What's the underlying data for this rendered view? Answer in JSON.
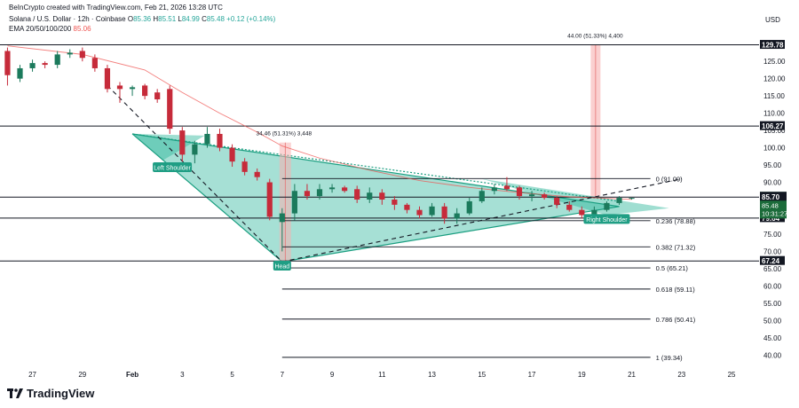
{
  "header": {
    "credit": "BeInCrypto created with TradingView.com, Feb 21, 2026 13:28 UTC",
    "symbol": "Solana / U.S. Dollar · 12h · Coinbase",
    "ohlc": {
      "o_label": "O",
      "o": "85.36",
      "h_label": "H",
      "h": "85.51",
      "l_label": "L",
      "l": "84.99",
      "c_label": "C",
      "c": "85.48",
      "chg": "+0.12 (+0.14%)"
    },
    "ema_label": "EMA 20/50/100/200",
    "ema_value": "85.06"
  },
  "brand": {
    "name": "TradingView"
  },
  "chart_data": {
    "type": "candlestick",
    "currency": "USD",
    "ylim": [
      37,
      133
    ],
    "y_ticks": [
      40,
      45,
      50,
      55,
      60,
      65,
      70,
      75,
      80,
      85,
      90,
      95,
      100,
      105,
      110,
      115,
      120,
      125
    ],
    "x_ticks": [
      {
        "label": "27",
        "t": 1
      },
      {
        "label": "29",
        "t": 5
      },
      {
        "label": "Feb",
        "t": 9
      },
      {
        "label": "3",
        "t": 13
      },
      {
        "label": "5",
        "t": 17
      },
      {
        "label": "7",
        "t": 21
      },
      {
        "label": "9",
        "t": 25
      },
      {
        "label": "11",
        "t": 29
      },
      {
        "label": "13",
        "t": 33
      },
      {
        "label": "15",
        "t": 37
      },
      {
        "label": "17",
        "t": 41
      },
      {
        "label": "19",
        "t": 45
      },
      {
        "label": "21",
        "t": 49
      },
      {
        "label": "23",
        "t": 53
      },
      {
        "label": "25",
        "t": 57
      }
    ],
    "candles": [
      {
        "t": -1,
        "o": 128.0,
        "h": 129.0,
        "l": 118.0,
        "c": 121.0
      },
      {
        "t": 0,
        "o": 120.0,
        "h": 124.0,
        "l": 119.0,
        "c": 123.0
      },
      {
        "t": 1,
        "o": 123.0,
        "h": 125.5,
        "l": 122.0,
        "c": 124.5
      },
      {
        "t": 2,
        "o": 124.5,
        "h": 125.0,
        "l": 123.0,
        "c": 124.0
      },
      {
        "t": 3,
        "o": 124.0,
        "h": 128.0,
        "l": 123.0,
        "c": 127.0
      },
      {
        "t": 4,
        "o": 127.0,
        "h": 128.5,
        "l": 126.0,
        "c": 127.5
      },
      {
        "t": 5,
        "o": 128.0,
        "h": 129.0,
        "l": 125.0,
        "c": 126.0
      },
      {
        "t": 6,
        "o": 126.0,
        "h": 127.0,
        "l": 122.0,
        "c": 123.0
      },
      {
        "t": 7,
        "o": 123.0,
        "h": 124.0,
        "l": 116.0,
        "c": 117.0
      },
      {
        "t": 8,
        "o": 118.0,
        "h": 119.0,
        "l": 113.0,
        "c": 117.0
      },
      {
        "t": 9,
        "o": 117.0,
        "h": 118.0,
        "l": 115.0,
        "c": 117.5
      },
      {
        "t": 10,
        "o": 118.0,
        "h": 118.5,
        "l": 114.0,
        "c": 115.0
      },
      {
        "t": 11,
        "o": 116.0,
        "h": 117.0,
        "l": 113.0,
        "c": 114.0
      },
      {
        "t": 12,
        "o": 117.0,
        "h": 118.0,
        "l": 104.0,
        "c": 105.5
      },
      {
        "t": 13,
        "o": 105.0,
        "h": 106.0,
        "l": 96.0,
        "c": 98.0
      },
      {
        "t": 14,
        "o": 98.0,
        "h": 102.0,
        "l": 95.5,
        "c": 101.0
      },
      {
        "t": 15,
        "o": 101.0,
        "h": 106.0,
        "l": 100.0,
        "c": 104.0
      },
      {
        "t": 16,
        "o": 104.0,
        "h": 105.5,
        "l": 99.0,
        "c": 100.0
      },
      {
        "t": 17,
        "o": 100.0,
        "h": 101.0,
        "l": 94.5,
        "c": 96.0
      },
      {
        "t": 18,
        "o": 96.0,
        "h": 97.0,
        "l": 92.0,
        "c": 93.0
      },
      {
        "t": 19,
        "o": 93.0,
        "h": 94.0,
        "l": 90.5,
        "c": 91.5
      },
      {
        "t": 20,
        "o": 90.0,
        "h": 91.0,
        "l": 79.0,
        "c": 80.0
      },
      {
        "t": 21,
        "o": 78.5,
        "h": 82.5,
        "l": 70.0,
        "c": 81.0
      },
      {
        "t": 22,
        "o": 81.0,
        "h": 89.5,
        "l": 79.0,
        "c": 87.5
      },
      {
        "t": 23,
        "o": 87.5,
        "h": 89.5,
        "l": 85.0,
        "c": 86.0
      },
      {
        "t": 24,
        "o": 86.0,
        "h": 89.5,
        "l": 85.0,
        "c": 88.0
      },
      {
        "t": 25,
        "o": 88.0,
        "h": 89.5,
        "l": 87.0,
        "c": 88.5
      },
      {
        "t": 26,
        "o": 88.5,
        "h": 89.0,
        "l": 87.0,
        "c": 87.5
      },
      {
        "t": 27,
        "o": 88.0,
        "h": 89.0,
        "l": 84.0,
        "c": 85.0
      },
      {
        "t": 28,
        "o": 85.0,
        "h": 88.5,
        "l": 84.0,
        "c": 87.0
      },
      {
        "t": 29,
        "o": 87.0,
        "h": 88.0,
        "l": 83.5,
        "c": 85.0
      },
      {
        "t": 30,
        "o": 85.0,
        "h": 86.0,
        "l": 82.0,
        "c": 83.5
      },
      {
        "t": 31,
        "o": 83.5,
        "h": 84.0,
        "l": 81.0,
        "c": 82.0
      },
      {
        "t": 32,
        "o": 82.0,
        "h": 83.0,
        "l": 79.5,
        "c": 80.5
      },
      {
        "t": 33,
        "o": 80.5,
        "h": 84.0,
        "l": 80.0,
        "c": 83.0
      },
      {
        "t": 34,
        "o": 83.0,
        "h": 84.0,
        "l": 78.0,
        "c": 79.5
      },
      {
        "t": 35,
        "o": 79.5,
        "h": 82.5,
        "l": 78.0,
        "c": 81.0
      },
      {
        "t": 36,
        "o": 81.0,
        "h": 85.5,
        "l": 80.5,
        "c": 84.5
      },
      {
        "t": 37,
        "o": 84.5,
        "h": 88.5,
        "l": 84.0,
        "c": 87.5
      },
      {
        "t": 38,
        "o": 87.5,
        "h": 89.5,
        "l": 86.5,
        "c": 88.5
      },
      {
        "t": 39,
        "o": 89.0,
        "h": 91.5,
        "l": 87.5,
        "c": 88.0
      },
      {
        "t": 40,
        "o": 88.5,
        "h": 89.0,
        "l": 85.0,
        "c": 86.0
      },
      {
        "t": 41,
        "o": 86.0,
        "h": 87.5,
        "l": 84.5,
        "c": 86.5
      },
      {
        "t": 42,
        "o": 86.5,
        "h": 87.0,
        "l": 85.0,
        "c": 85.5
      },
      {
        "t": 43,
        "o": 85.5,
        "h": 86.0,
        "l": 82.5,
        "c": 83.5
      },
      {
        "t": 44,
        "o": 83.5,
        "h": 84.5,
        "l": 81.5,
        "c": 82.0
      },
      {
        "t": 45,
        "o": 82.0,
        "h": 83.0,
        "l": 79.5,
        "c": 80.5
      },
      {
        "t": 46,
        "o": 80.5,
        "h": 83.0,
        "l": 80.0,
        "c": 82.0
      },
      {
        "t": 47,
        "o": 82.0,
        "h": 84.5,
        "l": 81.5,
        "c": 84.0
      },
      {
        "t": 48,
        "o": 84.0,
        "h": 86.0,
        "l": 83.5,
        "c": 85.5
      },
      {
        "t": 49,
        "o": 85.36,
        "h": 85.51,
        "l": 84.99,
        "c": 85.48
      }
    ],
    "ema": [
      {
        "t": -1,
        "v": 129.5
      },
      {
        "t": 5,
        "v": 127.0
      },
      {
        "t": 10,
        "v": 122.5
      },
      {
        "t": 13,
        "v": 116.0
      },
      {
        "t": 16,
        "v": 110.0
      },
      {
        "t": 19,
        "v": 104.5
      },
      {
        "t": 21,
        "v": 100.5
      },
      {
        "t": 24,
        "v": 97.0
      },
      {
        "t": 28,
        "v": 93.5
      },
      {
        "t": 32,
        "v": 90.5
      },
      {
        "t": 36,
        "v": 88.5
      },
      {
        "t": 40,
        "v": 87.0
      },
      {
        "t": 44,
        "v": 85.8
      },
      {
        "t": 49,
        "v": 85.06
      }
    ],
    "levels": [
      {
        "price": 129.78,
        "label": "129.78"
      },
      {
        "price": 106.27,
        "label": "106.27"
      },
      {
        "price": 79.64,
        "label": "79.64"
      },
      {
        "price": 67.24,
        "label": "67.24"
      }
    ],
    "current_price": {
      "price": 85.7,
      "label": "85.70",
      "close_label": "85.48",
      "countdown": "10:31:27"
    },
    "fib_levels": [
      {
        "price": 91.09,
        "label": "0 (91.09)"
      },
      {
        "price": 78.88,
        "label": "0.236 (78.88)"
      },
      {
        "price": 71.32,
        "label": "0.382 (71.32)"
      },
      {
        "price": 65.21,
        "label": "0.5 (65.21)"
      },
      {
        "price": 59.11,
        "label": "0.618 (59.11)"
      },
      {
        "price": 50.41,
        "label": "0.786 (50.41)"
      },
      {
        "price": 39.34,
        "label": "1 (39.34)"
      }
    ],
    "pattern": {
      "triangle": [
        {
          "t": 9,
          "p": 104.0
        },
        {
          "t": 21,
          "p": 67.0
        },
        {
          "t": 48,
          "p": 83.0
        }
      ],
      "left_shoulder_triangle": [
        {
          "t": 9,
          "p": 104.0
        },
        {
          "t": 11.5,
          "p": 96.5
        },
        {
          "t": 14.8,
          "p": 103.5
        }
      ],
      "right_shoulder_triangle": [
        {
          "t": 37,
          "p": 91.0
        },
        {
          "t": 47,
          "p": 80.5
        },
        {
          "t": 52,
          "p": 82.5
        }
      ],
      "neckline_dashed": [
        {
          "t": 21,
          "p": 67.0
        },
        {
          "t": 53,
          "p": 91.0
        }
      ],
      "left_dashed": [
        {
          "t": 7,
          "p": 118.0
        },
        {
          "t": 21,
          "p": 67.0
        }
      ],
      "labels": {
        "left": "Left Shoulder",
        "head": "Head",
        "right": "Right Shoulder"
      },
      "measure_left": {
        "t": 21,
        "from": 67.0,
        "to": 101.5,
        "label": "34.46 (51.31%) 3,448"
      },
      "measure_right": {
        "t": 46,
        "from": 86.0,
        "to": 129.78,
        "label": "44.00 (51.33%) 4,400"
      }
    }
  }
}
